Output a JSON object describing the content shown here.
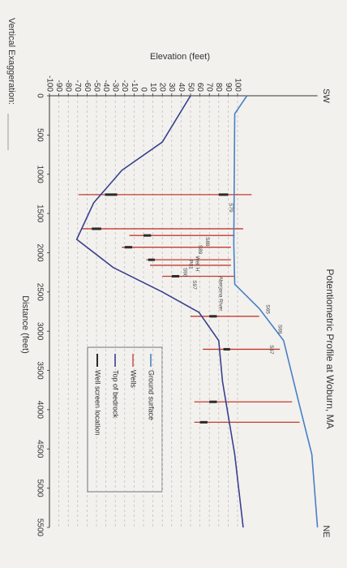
{
  "chart_data": {
    "type": "line",
    "title": "Potentiometric Profile at Woburn, MA",
    "x_label": "Distance (feet)",
    "y_label": "Elevation (feet)",
    "left_label": "SW",
    "right_label": "NE",
    "footer": "Vertical Exaggeration:",
    "xlim": [
      0,
      5500
    ],
    "xticks": [
      0,
      500,
      1000,
      1500,
      2000,
      2500,
      3000,
      3500,
      4000,
      4500,
      5000,
      5500
    ],
    "ylim": [
      -100,
      185
    ],
    "yticks": [
      100,
      90,
      80,
      70,
      60,
      50,
      40,
      30,
      20,
      10,
      0,
      -10,
      -20,
      -30,
      -40,
      -50,
      -60,
      -70,
      -80,
      -90,
      -100
    ],
    "grid": true,
    "series": [
      {
        "name": "Ground surface",
        "color": "#4a7fc4",
        "x": [
          0,
          230,
          1880,
          2400,
          2710,
          3120,
          3950,
          4570,
          5500
        ],
        "values": [
          110,
          97,
          96,
          97,
          123,
          149,
          166,
          179,
          185
        ]
      },
      {
        "name": "Top of bedrock",
        "color": "#3a3f8f",
        "x": [
          0,
          590,
          950,
          1365,
          1830,
          2190,
          2500,
          2760,
          3120,
          3640,
          4570,
          5500
        ],
        "values": [
          50,
          20,
          -23,
          -53,
          -71,
          -32,
          20,
          59,
          80,
          84,
          97,
          106
        ]
      }
    ],
    "wells": {
      "name": "Wells",
      "color": "#c43a2e",
      "x": [
        1260,
        1695,
        1780,
        1930,
        2090,
        2160,
        2300,
        2810,
        3230,
        3900,
        4160
      ],
      "top": [
        115,
        106,
        97,
        93,
        93,
        93,
        97,
        123,
        145,
        158,
        166
      ],
      "bottom": [
        -69,
        -66,
        -15,
        -23,
        3,
        7,
        20,
        50,
        63,
        54,
        54
      ]
    },
    "screens": {
      "name": "Well screen location",
      "color": "#2b2b2b",
      "x": [
        1260,
        1260,
        1695,
        1780,
        1930,
        2090,
        2300,
        2810,
        3230,
        3900,
        4160
      ],
      "top": [
        -28,
        90,
        -45,
        8,
        -12,
        12,
        38,
        78,
        92,
        78,
        68
      ],
      "bottom": [
        -41,
        80,
        -55,
        0,
        -20,
        5,
        30,
        70,
        85,
        70,
        60
      ]
    },
    "annotations": [
      {
        "text": "S79",
        "x": 1365,
        "y": 93
      },
      {
        "text": "Aberjona River",
        "x": 2300,
        "y": 82
      },
      {
        "text": "S88",
        "x": 1800,
        "y": 68
      },
      {
        "text": "S89",
        "x": 1900,
        "y": 60
      },
      {
        "text": "Well H",
        "x": 2040,
        "y": 57
      },
      {
        "text": "P01",
        "x": 2090,
        "y": 50
      },
      {
        "text": "S90",
        "x": 2190,
        "y": 44
      },
      {
        "text": "S97",
        "x": 2350,
        "y": 54
      },
      {
        "text": "S65",
        "x": 2660,
        "y": 132
      },
      {
        "text": "S69",
        "x": 2915,
        "y": 145
      },
      {
        "text": "S67",
        "x": 3175,
        "y": 136
      }
    ]
  }
}
